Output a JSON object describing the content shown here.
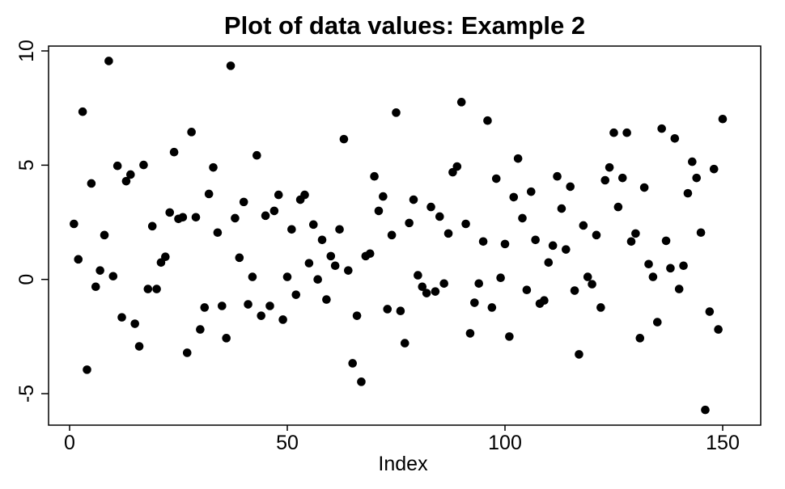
{
  "chart_data": {
    "type": "scatter",
    "title": "Plot of data values: Example 2",
    "xlabel": "Index",
    "ylabel": "",
    "xlim": [
      0,
      150
    ],
    "ylim": [
      -5,
      10
    ],
    "xticks": [
      "0",
      "50",
      "100",
      "150"
    ],
    "yticks": [
      "-5",
      "0",
      "5",
      "10"
    ],
    "grid": false,
    "marker_color": "#000000",
    "y": [
      2.43,
      0.88,
      7.34,
      -3.95,
      4.2,
      -0.32,
      0.39,
      1.94,
      9.56,
      0.14,
      4.97,
      -1.66,
      4.3,
      4.59,
      -1.94,
      -2.93,
      5.01,
      -0.42,
      2.33,
      -0.42,
      0.74,
      0.99,
      2.93,
      5.57,
      2.65,
      2.72,
      -3.21,
      6.45,
      2.72,
      -2.19,
      -1.23,
      3.74,
      4.9,
      2.05,
      -1.16,
      -2.57,
      9.35,
      2.68,
      0.95,
      3.39,
      -1.09,
      0.11,
      5.43,
      -1.59,
      2.79,
      -1.16,
      3.0,
      3.7,
      -1.76,
      0.11,
      2.19,
      -0.67,
      3.49,
      3.7,
      0.71,
      2.4,
      0.0,
      1.73,
      -0.88,
      1.02,
      0.6,
      2.19,
      6.14,
      0.39,
      -3.67,
      -1.59,
      -4.48,
      1.02,
      1.13,
      4.51,
      3.0,
      3.63,
      -1.3,
      1.94,
      7.3,
      -1.38,
      -2.79,
      2.47,
      3.49,
      0.18,
      -0.32,
      -0.6,
      3.17,
      -0.53,
      2.75,
      -0.18,
      2.01,
      4.69,
      4.94,
      7.76,
      2.43,
      -2.36,
      -1.02,
      -0.18,
      1.66,
      6.95,
      -1.23,
      4.41,
      0.07,
      1.55,
      -2.5,
      3.6,
      5.29,
      2.68,
      -0.46,
      3.84,
      1.73,
      -1.06,
      -0.92,
      0.74,
      1.48,
      4.51,
      3.1,
      1.31,
      4.06,
      -0.49,
      -3.28,
      2.36,
      0.11,
      -0.21,
      1.94,
      -1.23,
      4.34,
      4.9,
      6.42,
      3.17,
      4.44,
      6.42,
      1.66,
      2.01,
      -2.57,
      4.02,
      0.67,
      0.11,
      -1.87,
      6.6,
      1.69,
      0.49,
      6.17,
      -0.42,
      0.6,
      3.77,
      5.15,
      4.44,
      2.05,
      -5.71,
      -1.41,
      4.83,
      -2.19,
      7.02
    ]
  }
}
